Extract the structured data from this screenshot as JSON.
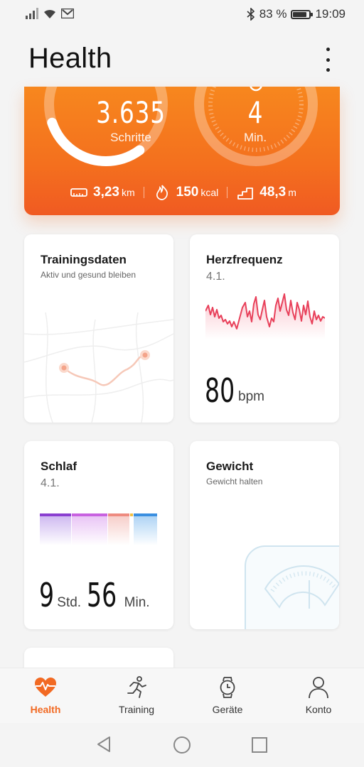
{
  "status_bar": {
    "battery_percent": "83 %",
    "time": "19:09",
    "battery_level": 0.83
  },
  "header": {
    "title": "Health"
  },
  "activity": {
    "steps_value": "3.635",
    "steps_label": "Schritte",
    "minutes_value": "4",
    "minutes_label": "Min.",
    "distance_value": "3,23",
    "distance_unit": "km",
    "calories_value": "150",
    "calories_unit": "kcal",
    "floors_value": "48,3",
    "floors_unit": "m"
  },
  "tiles": {
    "training": {
      "title": "Trainingsdaten",
      "subtitle": "Aktiv und gesund bleiben"
    },
    "heart": {
      "title": "Herzfrequenz",
      "date": "4.1.",
      "value": "80",
      "unit": "bpm"
    },
    "sleep": {
      "title": "Schlaf",
      "date": "4.1.",
      "hours": "9",
      "hours_unit": "Std.",
      "minutes": "56",
      "minutes_unit": "Min."
    },
    "weight": {
      "title": "Gewicht",
      "subtitle": "Gewicht halten"
    }
  },
  "bottom_nav": [
    {
      "label": "Health",
      "icon": "heart-pulse-icon",
      "active": true
    },
    {
      "label": "Training",
      "icon": "running-person-icon",
      "active": false
    },
    {
      "label": "Geräte",
      "icon": "watch-icon",
      "active": false
    },
    {
      "label": "Konto",
      "icon": "person-icon",
      "active": false
    }
  ],
  "colors": {
    "accent": "#f26a23",
    "heart_line": "#e8405a"
  }
}
